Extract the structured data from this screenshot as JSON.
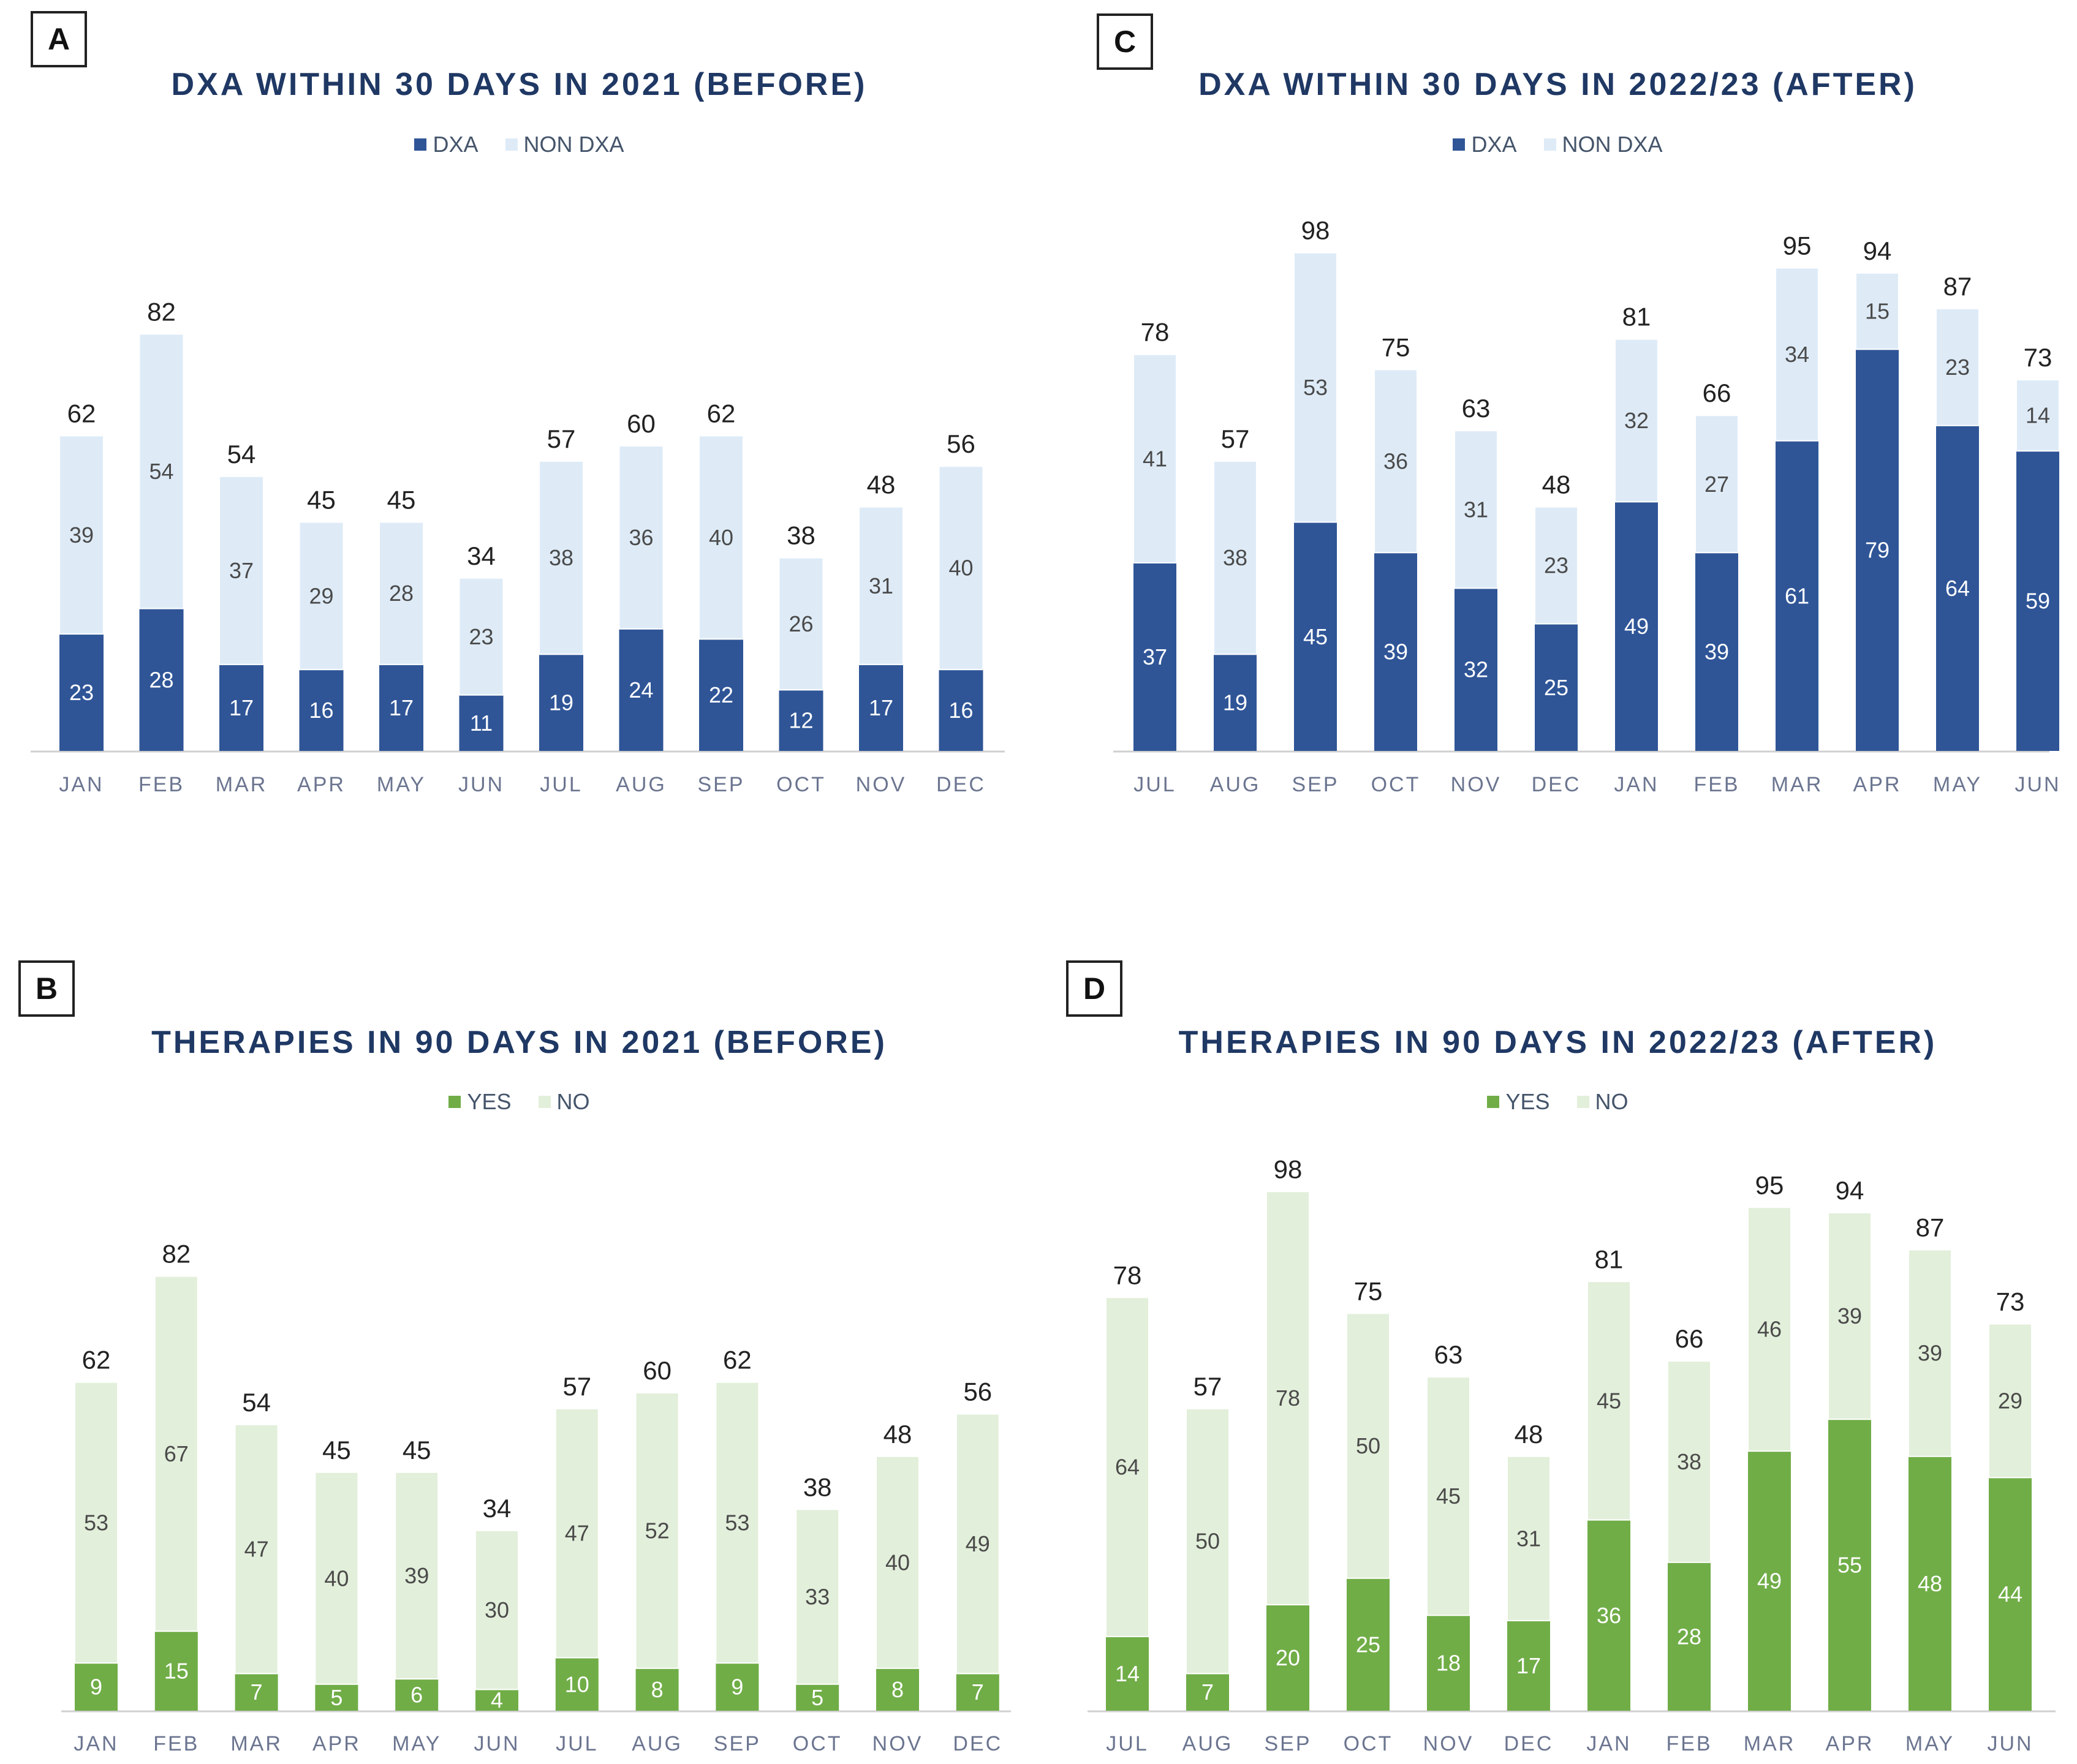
{
  "chart_data": [
    {
      "id": "A",
      "type": "bar",
      "stacked": true,
      "title": "DXA WITHIN 30 DAYS IN 2021 (BEFORE)",
      "categories": [
        "JAN",
        "FEB",
        "MAR",
        "APR",
        "MAY",
        "JUN",
        "JUL",
        "AUG",
        "SEP",
        "OCT",
        "NOV",
        "DEC"
      ],
      "series": [
        {
          "name": "DXA",
          "color": "#2f5597",
          "label_color": "#ffffff",
          "values": [
            23,
            28,
            17,
            16,
            17,
            11,
            19,
            24,
            22,
            12,
            17,
            16
          ]
        },
        {
          "name": "NON DXA",
          "color": "#deebf7",
          "label_color": "#4a4a4a",
          "values": [
            39,
            54,
            37,
            29,
            28,
            23,
            38,
            36,
            40,
            26,
            31,
            40
          ]
        }
      ],
      "totals": [
        62,
        82,
        54,
        45,
        45,
        34,
        57,
        60,
        62,
        38,
        48,
        56
      ],
      "ylim": [
        0,
        100
      ],
      "grid": false,
      "legend": "top-center"
    },
    {
      "id": "B",
      "type": "bar",
      "stacked": true,
      "title": "THERAPIES IN 90 DAYS IN 2021 (BEFORE)",
      "categories": [
        "JAN",
        "FEB",
        "MAR",
        "APR",
        "MAY",
        "JUN",
        "JUL",
        "AUG",
        "SEP",
        "OCT",
        "NOV",
        "DEC"
      ],
      "series": [
        {
          "name": "YES",
          "color": "#70ad47",
          "label_color": "#ffffff",
          "values": [
            9,
            15,
            7,
            5,
            6,
            4,
            10,
            8,
            9,
            5,
            8,
            7
          ]
        },
        {
          "name": "NO",
          "color": "#e2efda",
          "label_color": "#4a4a4a",
          "values": [
            53,
            67,
            47,
            40,
            39,
            30,
            47,
            52,
            53,
            33,
            40,
            49
          ]
        }
      ],
      "totals": [
        62,
        82,
        54,
        45,
        45,
        34,
        57,
        60,
        62,
        38,
        48,
        56
      ],
      "ylim": [
        0,
        100
      ],
      "grid": false,
      "legend": "top-center"
    },
    {
      "id": "C",
      "type": "bar",
      "stacked": true,
      "title": "DXA WITHIN 30 DAYS IN 2022/23 (AFTER)",
      "categories": [
        "JUL",
        "AUG",
        "SEP",
        "OCT",
        "NOV",
        "DEC",
        "JAN",
        "FEB",
        "MAR",
        "APR",
        "MAY",
        "JUN"
      ],
      "series": [
        {
          "name": "DXA",
          "color": "#2f5597",
          "label_color": "#ffffff",
          "values": [
            37,
            19,
            45,
            39,
            32,
            25,
            49,
            39,
            61,
            79,
            64,
            59
          ]
        },
        {
          "name": "NON DXA",
          "color": "#deebf7",
          "label_color": "#4a4a4a",
          "values": [
            41,
            38,
            53,
            36,
            31,
            23,
            32,
            27,
            34,
            15,
            23,
            14
          ]
        }
      ],
      "totals": [
        78,
        57,
        98,
        75,
        63,
        48,
        81,
        66,
        95,
        94,
        87,
        73
      ],
      "ylim": [
        0,
        100
      ],
      "grid": false,
      "legend": "top-center"
    },
    {
      "id": "D",
      "type": "bar",
      "stacked": true,
      "title": "THERAPIES IN 90 DAYS IN 2022/23 (AFTER)",
      "categories": [
        "JUL",
        "AUG",
        "SEP",
        "OCT",
        "NOV",
        "DEC",
        "JAN",
        "FEB",
        "MAR",
        "APR",
        "MAY",
        "JUN"
      ],
      "series": [
        {
          "name": "YES",
          "color": "#70ad47",
          "label_color": "#ffffff",
          "values": [
            14,
            7,
            20,
            25,
            18,
            17,
            36,
            28,
            49,
            55,
            48,
            44
          ]
        },
        {
          "name": "NO",
          "color": "#e2efda",
          "label_color": "#4a4a4a",
          "values": [
            64,
            50,
            78,
            50,
            45,
            31,
            45,
            38,
            46,
            39,
            39,
            29
          ]
        }
      ],
      "totals": [
        78,
        57,
        98,
        75,
        63,
        48,
        81,
        66,
        95,
        94,
        87,
        73
      ],
      "ylim": [
        0,
        100
      ],
      "grid": false,
      "legend": "top-center"
    }
  ]
}
